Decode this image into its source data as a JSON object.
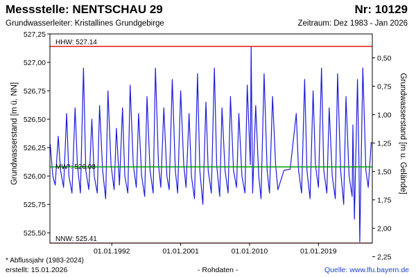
{
  "header": {
    "title": "Messstelle: NENTSCHAU 29",
    "number": "Nr: 10129",
    "aquifer": "Grundwasserleiter: Kristallines Grundgebirge",
    "period": "Zeitraum: Dez 1983 - Jan 2026"
  },
  "footer": {
    "footnote": "* Abflussjahr (1983-2024)",
    "created": "erstellt:  15.01.2026",
    "raw": "- Rohdaten -",
    "source": "Quelle:  www.lfu.bayern.de"
  },
  "colors": {
    "series": "#1a1adc",
    "mean_line": "#00a000",
    "extreme_line": "#e00000",
    "frame": "#000000"
  },
  "chart_data": {
    "type": "line",
    "ylabel": "Grundwasserstand [m ü. NN]",
    "ylabel_right": "Grundwasserstand [m u. Gelände]",
    "ylim": [
      525.41,
      527.25
    ],
    "xlim": [
      "1983-12-01",
      "2026-01-15"
    ],
    "x_ticks": [
      "01.01.1992",
      "01.01.2001",
      "01.01.2010",
      "01.01.2019"
    ],
    "y_ticks": [
      "525,50",
      "525,75",
      "526,00",
      "526,25",
      "526,50",
      "526,75",
      "527,00",
      "527,25"
    ],
    "y_ticks_right": [
      "0,50",
      "0,75",
      "1,00",
      "1,25",
      "1,50",
      "1,75",
      "2,00",
      "2,25"
    ],
    "grid": false,
    "reference_lines": [
      {
        "label": "HHW: 527.14",
        "value": 527.14
      },
      {
        "label": "MW*: 526.08",
        "value": 526.08
      },
      {
        "label": "NNW: 525.41",
        "value": 525.41
      }
    ],
    "series": [
      {
        "x": [
          1983.95,
          1984.3,
          1984.6,
          1985.0,
          1985.3,
          1985.7,
          1986.1,
          1986.4,
          1986.8,
          1987.2,
          1987.5,
          1987.9,
          1988.3,
          1988.6,
          1989.0,
          1989.4,
          1989.7,
          1990.1,
          1990.4,
          1990.8,
          1991.2,
          1991.5,
          1991.9,
          1992.3,
          1992.6,
          1993.0,
          1993.4,
          1993.7,
          1994.1,
          1994.4,
          1994.8,
          1995.2,
          1995.5,
          1995.9,
          1996.3,
          1996.6,
          1997.0,
          1997.4,
          1997.7,
          1998.1,
          1998.4,
          1998.8,
          1999.2,
          1999.5,
          1999.9,
          2000.3,
          2000.6,
          2001.0,
          2001.4,
          2001.7,
          2002.1,
          2002.4,
          2002.8,
          2003.2,
          2003.5,
          2003.9,
          2004.3,
          2004.6,
          2005.0,
          2005.4,
          2005.7,
          2006.1,
          2006.4,
          2006.8,
          2007.2,
          2007.5,
          2007.9,
          2008.3,
          2008.6,
          2009.0,
          2009.4,
          2009.7,
          2010.1,
          2010.2,
          2010.4,
          2010.8,
          2011.2,
          2011.5,
          2011.9,
          2012.3,
          2012.6,
          2013.0,
          2013.4,
          2013.7,
          2014.5,
          2015.3,
          2016.1,
          2016.4,
          2016.8,
          2017.2,
          2017.5,
          2017.9,
          2018.3,
          2018.6,
          2019.0,
          2019.4,
          2019.7,
          2020.1,
          2020.4,
          2020.8,
          2021.2,
          2021.5,
          2021.9,
          2022.3,
          2022.6,
          2023.0,
          2023.4,
          2023.5,
          2023.7,
          2024.1,
          2024.3,
          2024.4,
          2024.8,
          2025.2,
          2025.5,
          2025.9
        ],
        "values": [
          526.28,
          526.0,
          525.92,
          526.35,
          526.05,
          525.9,
          526.55,
          526.0,
          525.85,
          526.6,
          526.1,
          525.85,
          526.95,
          526.05,
          525.88,
          526.5,
          526.0,
          525.85,
          526.62,
          526.05,
          525.8,
          526.75,
          526.1,
          525.88,
          526.42,
          525.92,
          526.6,
          526.0,
          525.85,
          526.8,
          526.1,
          525.9,
          526.55,
          526.0,
          525.82,
          526.7,
          526.05,
          525.85,
          526.95,
          526.1,
          525.9,
          526.6,
          526.0,
          525.88,
          526.85,
          526.05,
          525.85,
          526.75,
          526.1,
          525.9,
          526.55,
          526.0,
          525.8,
          526.9,
          526.05,
          525.75,
          526.65,
          526.05,
          525.85,
          526.95,
          526.1,
          525.82,
          526.6,
          526.05,
          525.85,
          526.7,
          526.05,
          525.9,
          526.55,
          526.0,
          525.85,
          526.8,
          526.1,
          527.14,
          525.85,
          526.62,
          526.0,
          525.8,
          526.9,
          526.05,
          525.85,
          526.7,
          526.1,
          525.88,
          526.05,
          526.06,
          526.55,
          526.05,
          525.85,
          526.85,
          526.05,
          525.8,
          526.75,
          526.1,
          525.9,
          526.95,
          526.05,
          525.85,
          526.6,
          526.0,
          525.8,
          526.9,
          526.05,
          525.75,
          526.7,
          526.0,
          525.82,
          526.45,
          525.62,
          526.85,
          526.1,
          525.42,
          526.95,
          526.05,
          525.9,
          526.3
        ]
      }
    ]
  }
}
